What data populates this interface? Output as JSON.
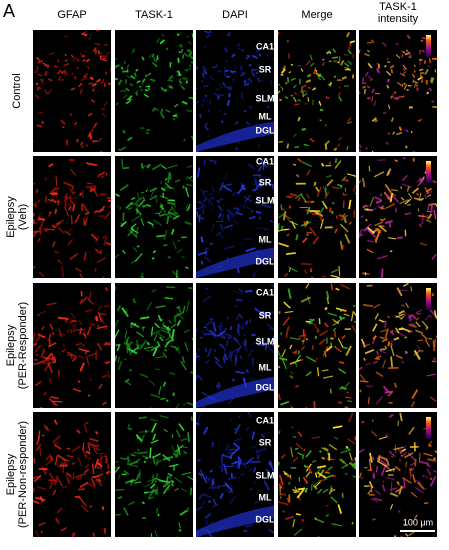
{
  "panel_label": "A",
  "columns": [
    [
      "GFAP"
    ],
    [
      "TASK-1"
    ],
    [
      "DAPI"
    ],
    [
      "Merge"
    ],
    [
      "TASK-1",
      "intensity"
    ]
  ],
  "rows": [
    {
      "label": [
        "Control"
      ],
      "layers": [
        "CA1",
        "SR",
        "SLM",
        "ML",
        "DGL"
      ]
    },
    {
      "label": [
        "Epilepsy",
        "(Veh)"
      ],
      "layers": [
        "CA1",
        "SR",
        "SLM",
        "ML",
        "DGL"
      ]
    },
    {
      "label": [
        "Epilepsy",
        "(PER-Responder)"
      ],
      "layers": [
        "CA1",
        "SR",
        "SLM",
        "ML",
        "DGL"
      ]
    },
    {
      "label": [
        "Epilepsy",
        "(PER-Non-responder)"
      ],
      "layers": [
        "CA1",
        "SR",
        "SLM",
        "ML",
        "DGL"
      ]
    }
  ],
  "scale_bar": "100 μm"
}
